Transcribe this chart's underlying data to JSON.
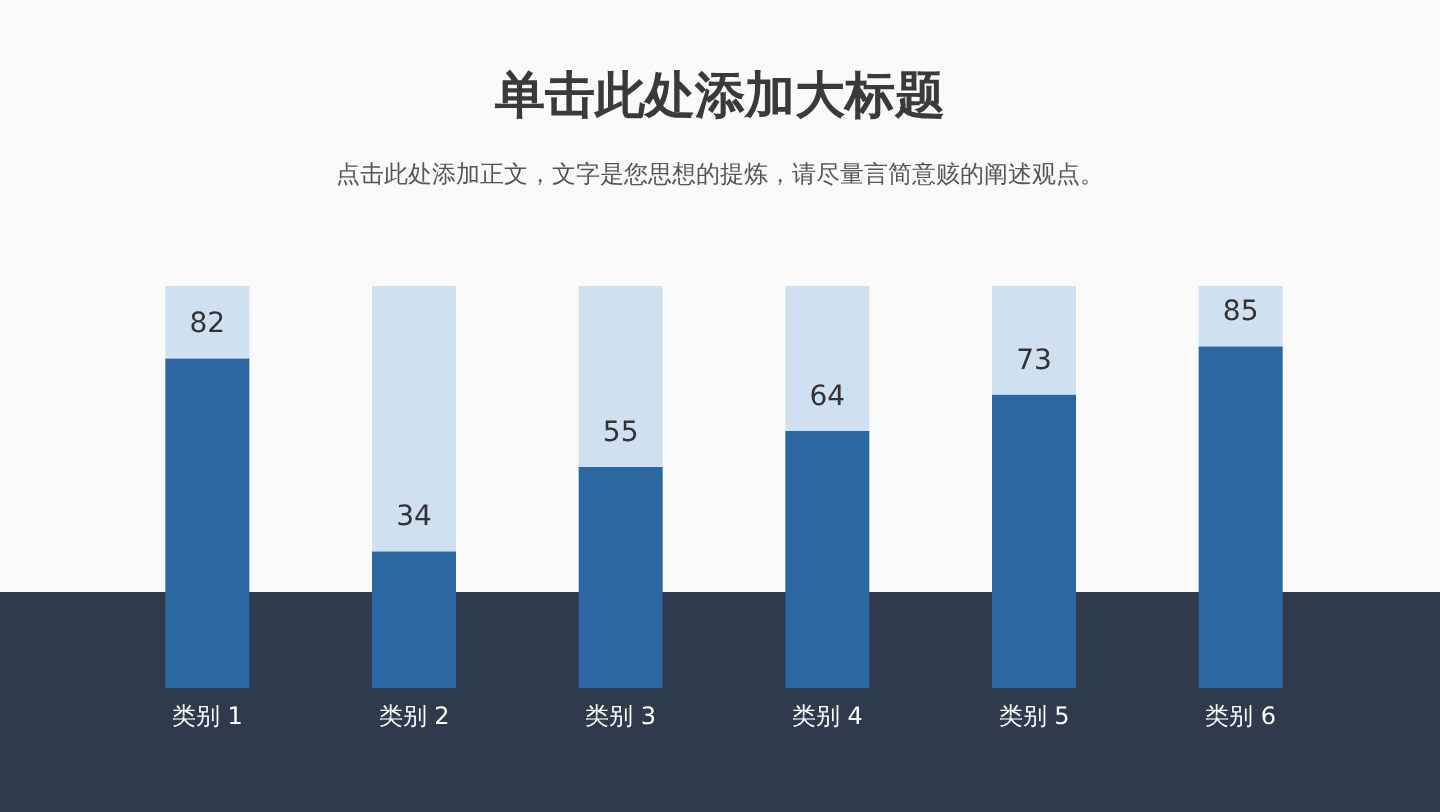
{
  "chart_data": {
    "type": "bar",
    "title": "单击此处添加大标题",
    "subtitle": "点击此处添加正文，文字是您思想的提炼，请尽量言简意赅的阐述观点。",
    "categories": [
      "类别 1",
      "类别 2",
      "类别 3",
      "类别 4",
      "类别 5",
      "类别 6"
    ],
    "stacked": true,
    "ylim": [
      0,
      100
    ],
    "tick_labels": "x",
    "series": [
      {
        "color": "#2b67a2",
        "values": [
          82,
          34,
          55,
          64,
          73,
          85
        ],
        "value_labels": [
          "82",
          "34",
          "55",
          "64",
          "73",
          "85"
        ]
      },
      {
        "color": "#cfe0f1",
        "values": [
          18,
          66,
          45,
          36,
          27,
          15
        ]
      }
    ]
  }
}
